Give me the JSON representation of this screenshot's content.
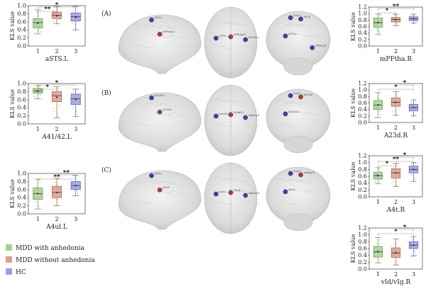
{
  "panels": [
    {
      "tag": "(A)"
    },
    {
      "tag": "(B)"
    },
    {
      "tag": "(C)"
    }
  ],
  "legend": [
    {
      "label": "MDD with anhedonia",
      "color": "#a9cf94"
    },
    {
      "label": "MDD without anhedonia",
      "color": "#d9a08c"
    },
    {
      "label": "HC",
      "color": "#9b9fe0"
    }
  ],
  "groups": [
    "1",
    "2",
    "3"
  ],
  "ylabel": "KLS value",
  "chart_data": [
    {
      "type": "box",
      "title": "aSTS.L",
      "ylim": [
        0.0,
        1.0
      ],
      "yticks": [
        "0.0",
        "0.2",
        "0.4",
        "0.6",
        "0.8",
        "1.0"
      ],
      "categories": [
        "1",
        "2",
        "3"
      ],
      "series": [
        {
          "name": "MDD with anhedonia",
          "min": 0.3,
          "q1": 0.45,
          "median": 0.58,
          "q3": 0.68,
          "max": 0.9,
          "mean": 0.57
        },
        {
          "name": "MDD without anhedonia",
          "min": 0.55,
          "q1": 0.68,
          "median": 0.76,
          "q3": 0.84,
          "max": 0.98,
          "mean": 0.75
        },
        {
          "name": "HC",
          "min": 0.4,
          "q1": 0.62,
          "median": 0.73,
          "q3": 0.82,
          "max": 0.98,
          "mean": 0.71
        }
      ],
      "significance": [
        {
          "from": "1",
          "to": "2",
          "label": "**"
        },
        {
          "from": "1",
          "to": "3",
          "label": "*"
        }
      ]
    },
    {
      "type": "box",
      "title": "A41/42.L",
      "ylim": [
        0.0,
        1.0
      ],
      "yticks": [
        "0.0",
        "0.2",
        "0.4",
        "0.6",
        "0.8",
        "1.0"
      ],
      "categories": [
        "1",
        "2",
        "3"
      ],
      "series": [
        {
          "name": "MDD with anhedonia",
          "min": 0.62,
          "q1": 0.76,
          "median": 0.82,
          "q3": 0.88,
          "max": 0.95,
          "mean": 0.81
        },
        {
          "name": "MDD without anhedonia",
          "min": 0.15,
          "q1": 0.55,
          "median": 0.7,
          "q3": 0.8,
          "max": 0.92,
          "mean": 0.66
        },
        {
          "name": "HC",
          "min": 0.18,
          "q1": 0.48,
          "median": 0.62,
          "q3": 0.74,
          "max": 0.86,
          "mean": 0.61
        }
      ],
      "significance": [
        {
          "from": "1",
          "to": "2",
          "label": "*"
        },
        {
          "from": "1",
          "to": "3",
          "label": "*"
        }
      ]
    },
    {
      "type": "box",
      "title": "A4ul.L",
      "ylim": [
        0.0,
        1.0
      ],
      "yticks": [
        "0.0",
        "0.2",
        "0.4",
        "0.6",
        "0.8",
        "1.0"
      ],
      "categories": [
        "1",
        "2",
        "3"
      ],
      "series": [
        {
          "name": "MDD with anhedonia",
          "min": 0.12,
          "q1": 0.36,
          "median": 0.5,
          "q3": 0.64,
          "max": 0.86,
          "mean": 0.5
        },
        {
          "name": "MDD without anhedonia",
          "min": 0.2,
          "q1": 0.4,
          "median": 0.53,
          "q3": 0.68,
          "max": 0.88,
          "mean": 0.53
        },
        {
          "name": "HC",
          "min": 0.45,
          "q1": 0.6,
          "median": 0.7,
          "q3": 0.8,
          "max": 0.95,
          "mean": 0.7
        }
      ],
      "significance": [
        {
          "from": "1",
          "to": "3",
          "label": "**"
        },
        {
          "from": "2",
          "to": "3",
          "label": "**"
        }
      ]
    },
    {
      "type": "box",
      "title": "mPFtha.R",
      "ylim": [
        0.0,
        1.2
      ],
      "yticks": [
        "0.0",
        "0.2",
        "0.4",
        "0.6",
        "0.8",
        "1.0",
        "1.2"
      ],
      "categories": [
        "1",
        "2",
        "3"
      ],
      "series": [
        {
          "name": "MDD with anhedonia",
          "min": 0.35,
          "q1": 0.58,
          "median": 0.72,
          "q3": 0.86,
          "max": 0.98,
          "mean": 0.72
        },
        {
          "name": "MDD without anhedonia",
          "min": 0.62,
          "q1": 0.74,
          "median": 0.82,
          "q3": 0.88,
          "max": 0.98,
          "mean": 0.81
        },
        {
          "name": "HC",
          "min": 0.7,
          "q1": 0.78,
          "median": 0.84,
          "q3": 0.9,
          "max": 0.98,
          "mean": 0.84
        }
      ],
      "significance": [
        {
          "from": "1",
          "to": "2",
          "label": "*"
        },
        {
          "from": "1",
          "to": "3",
          "label": "**"
        }
      ]
    },
    {
      "type": "box",
      "title": "A23d.R",
      "ylim": [
        0.0,
        1.2
      ],
      "yticks": [
        "0.0",
        "0.2",
        "0.4",
        "0.6",
        "0.8",
        "1.0",
        "1.2"
      ],
      "categories": [
        "1",
        "2",
        "3"
      ],
      "series": [
        {
          "name": "MDD with anhedonia",
          "min": 0.15,
          "q1": 0.4,
          "median": 0.54,
          "q3": 0.68,
          "max": 0.92,
          "mean": 0.54
        },
        {
          "name": "MDD without anhedonia",
          "min": 0.22,
          "q1": 0.5,
          "median": 0.62,
          "q3": 0.76,
          "max": 0.95,
          "mean": 0.62
        },
        {
          "name": "HC",
          "min": 0.2,
          "q1": 0.36,
          "median": 0.46,
          "q3": 0.56,
          "max": 0.7,
          "mean": 0.46
        }
      ],
      "significance": [
        {
          "from": "1",
          "to": "3",
          "label": "*"
        },
        {
          "from": "2",
          "to": "3",
          "label": "*"
        }
      ]
    },
    {
      "type": "box",
      "title": "A4t.R",
      "ylim": [
        0.0,
        1.2
      ],
      "yticks": [
        "0.0",
        "0.2",
        "0.4",
        "0.6",
        "0.8",
        "1.0",
        "1.2"
      ],
      "categories": [
        "1",
        "2",
        "3"
      ],
      "series": [
        {
          "name": "MDD with anhedonia",
          "min": 0.38,
          "q1": 0.52,
          "median": 0.62,
          "q3": 0.72,
          "max": 0.85,
          "mean": 0.62
        },
        {
          "name": "MDD without anhedonia",
          "min": 0.3,
          "q1": 0.55,
          "median": 0.7,
          "q3": 0.82,
          "max": 0.98,
          "mean": 0.7
        },
        {
          "name": "HC",
          "min": 0.45,
          "q1": 0.7,
          "median": 0.8,
          "q3": 0.9,
          "max": 1.0,
          "mean": 0.8
        }
      ],
      "significance": [
        {
          "from": "1",
          "to": "2",
          "label": "*"
        },
        {
          "from": "1",
          "to": "3",
          "label": "**"
        },
        {
          "from": "2",
          "to": "3",
          "label": "*"
        }
      ]
    },
    {
      "type": "box",
      "title": "vId/vIg.R",
      "ylim": [
        0.0,
        1.2
      ],
      "yticks": [
        "0.0",
        "0.2",
        "0.4",
        "0.6",
        "0.8",
        "1.0",
        "1.2"
      ],
      "categories": [
        "1",
        "2",
        "3"
      ],
      "series": [
        {
          "name": "MDD with anhedonia",
          "min": 0.18,
          "q1": 0.35,
          "median": 0.5,
          "q3": 0.66,
          "max": 0.92,
          "mean": 0.51
        },
        {
          "name": "MDD without anhedonia",
          "min": 0.12,
          "q1": 0.34,
          "median": 0.47,
          "q3": 0.62,
          "max": 0.88,
          "mean": 0.48
        },
        {
          "name": "HC",
          "min": 0.38,
          "q1": 0.6,
          "median": 0.7,
          "q3": 0.8,
          "max": 0.95,
          "mean": 0.7
        }
      ],
      "significance": [
        {
          "from": "1",
          "to": "3",
          "label": "*"
        },
        {
          "from": "2",
          "to": "3",
          "label": "*"
        }
      ]
    }
  ],
  "brain_rows": [
    {
      "sagittal": [
        {
          "label": "aSTS.L",
          "color": "#4040a0"
        },
        {
          "label": "mPFtha.R",
          "color": "#a04040"
        }
      ],
      "axial": [
        {
          "label": "aSTS.L",
          "color": "#4040a0"
        },
        {
          "label": "mPFtha.R",
          "color": "#a04040"
        },
        {
          "label": "A41/42.L",
          "color": "#4040a0"
        }
      ],
      "coronal": [
        {
          "label": "A4ul.L",
          "color": "#4040a0"
        },
        {
          "label": "A4t.R",
          "color": "#4040a0"
        },
        {
          "label": "aSTS.L",
          "color": "#4040a0"
        },
        {
          "label": "vId/vIg.R",
          "color": "#4040a0"
        }
      ]
    },
    {
      "sagittal": [
        {
          "label": "A41/42.L",
          "color": "#4040a0"
        },
        {
          "label": "A23d.R",
          "color": "#a04040"
        }
      ],
      "axial": [
        {
          "label": "A41/42.L",
          "color": "#4040a0"
        },
        {
          "label": "A23d.R",
          "color": "#a04040"
        },
        {
          "label": "vId/vIg.R",
          "color": "#4040a0"
        }
      ],
      "coronal": [
        {
          "label": "A4ul.L",
          "color": "#4040a0"
        },
        {
          "label": "A23d.R",
          "color": "#a04040"
        },
        {
          "label": "A41/42.L",
          "color": "#4040a0"
        }
      ]
    },
    {
      "sagittal": [
        {
          "label": "A4ul.L",
          "color": "#4040a0"
        },
        {
          "label": "A4t.R",
          "color": "#a04040"
        }
      ],
      "axial": [
        {
          "label": "A4ul.L",
          "color": "#4040a0"
        },
        {
          "label": "A4t.R",
          "color": "#a04040"
        },
        {
          "label": "vId/vIg.R",
          "color": "#4040a0"
        }
      ],
      "coronal": [
        {
          "label": "A4ul.L",
          "color": "#4040a0"
        },
        {
          "label": "vId/vIg.R",
          "color": "#a04040"
        },
        {
          "label": "A4t.R",
          "color": "#4040a0"
        }
      ]
    }
  ]
}
